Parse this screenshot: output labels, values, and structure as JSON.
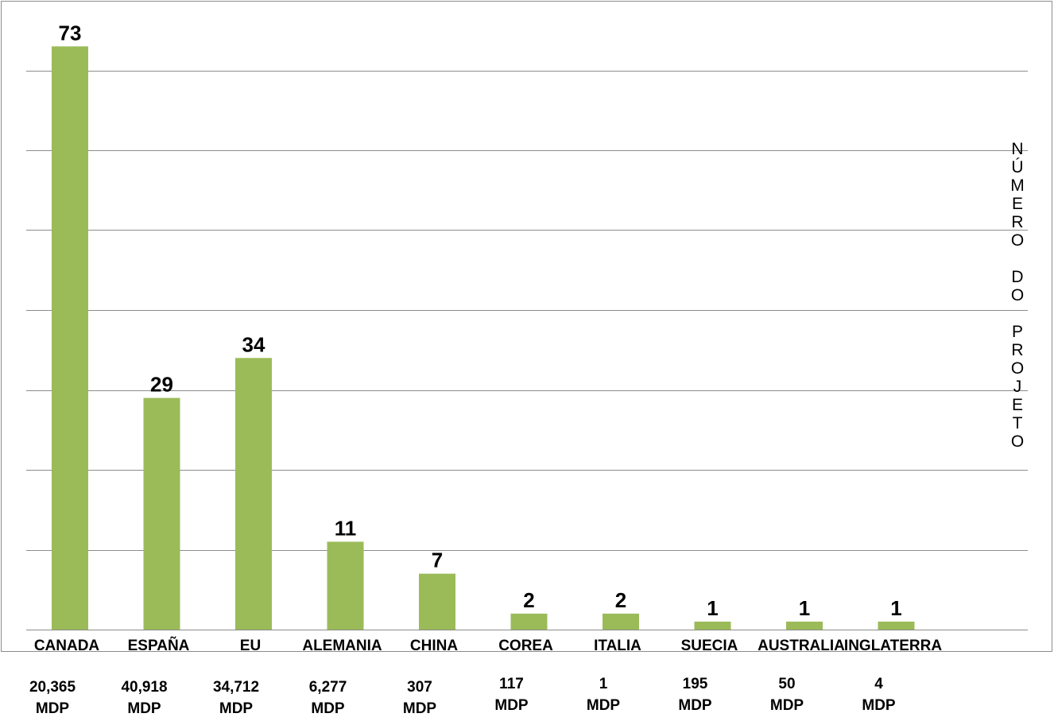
{
  "chart_data": {
    "type": "bar",
    "categories": [
      "CANADA",
      "ESPAÑA",
      "EU",
      "ALEMANIA",
      "CHINA",
      "COREA",
      "ITALIA",
      "SUECIA",
      "AUSTRALIA",
      "INGLATERRA"
    ],
    "values": [
      73,
      29,
      34,
      11,
      7,
      2,
      2,
      1,
      1,
      1
    ],
    "investment_labels": [
      [
        "20,365",
        "MDP"
      ],
      [
        "40,918",
        "MDP"
      ],
      [
        "34,712",
        "MDP"
      ],
      [
        "6,277",
        "MDP"
      ],
      [
        "307",
        "MDP"
      ],
      [
        "117",
        "MDP"
      ],
      [
        "1",
        "MDP"
      ],
      [
        "195",
        "MDP"
      ],
      [
        "50",
        "MDP"
      ],
      [
        "4",
        "MDP"
      ]
    ],
    "ylabel": "NÚMERO DO PROJETO",
    "ylim": [
      0,
      70
    ],
    "grid": true,
    "bar_color": "#9bbb59",
    "grid_color": "#8c8c8c"
  }
}
